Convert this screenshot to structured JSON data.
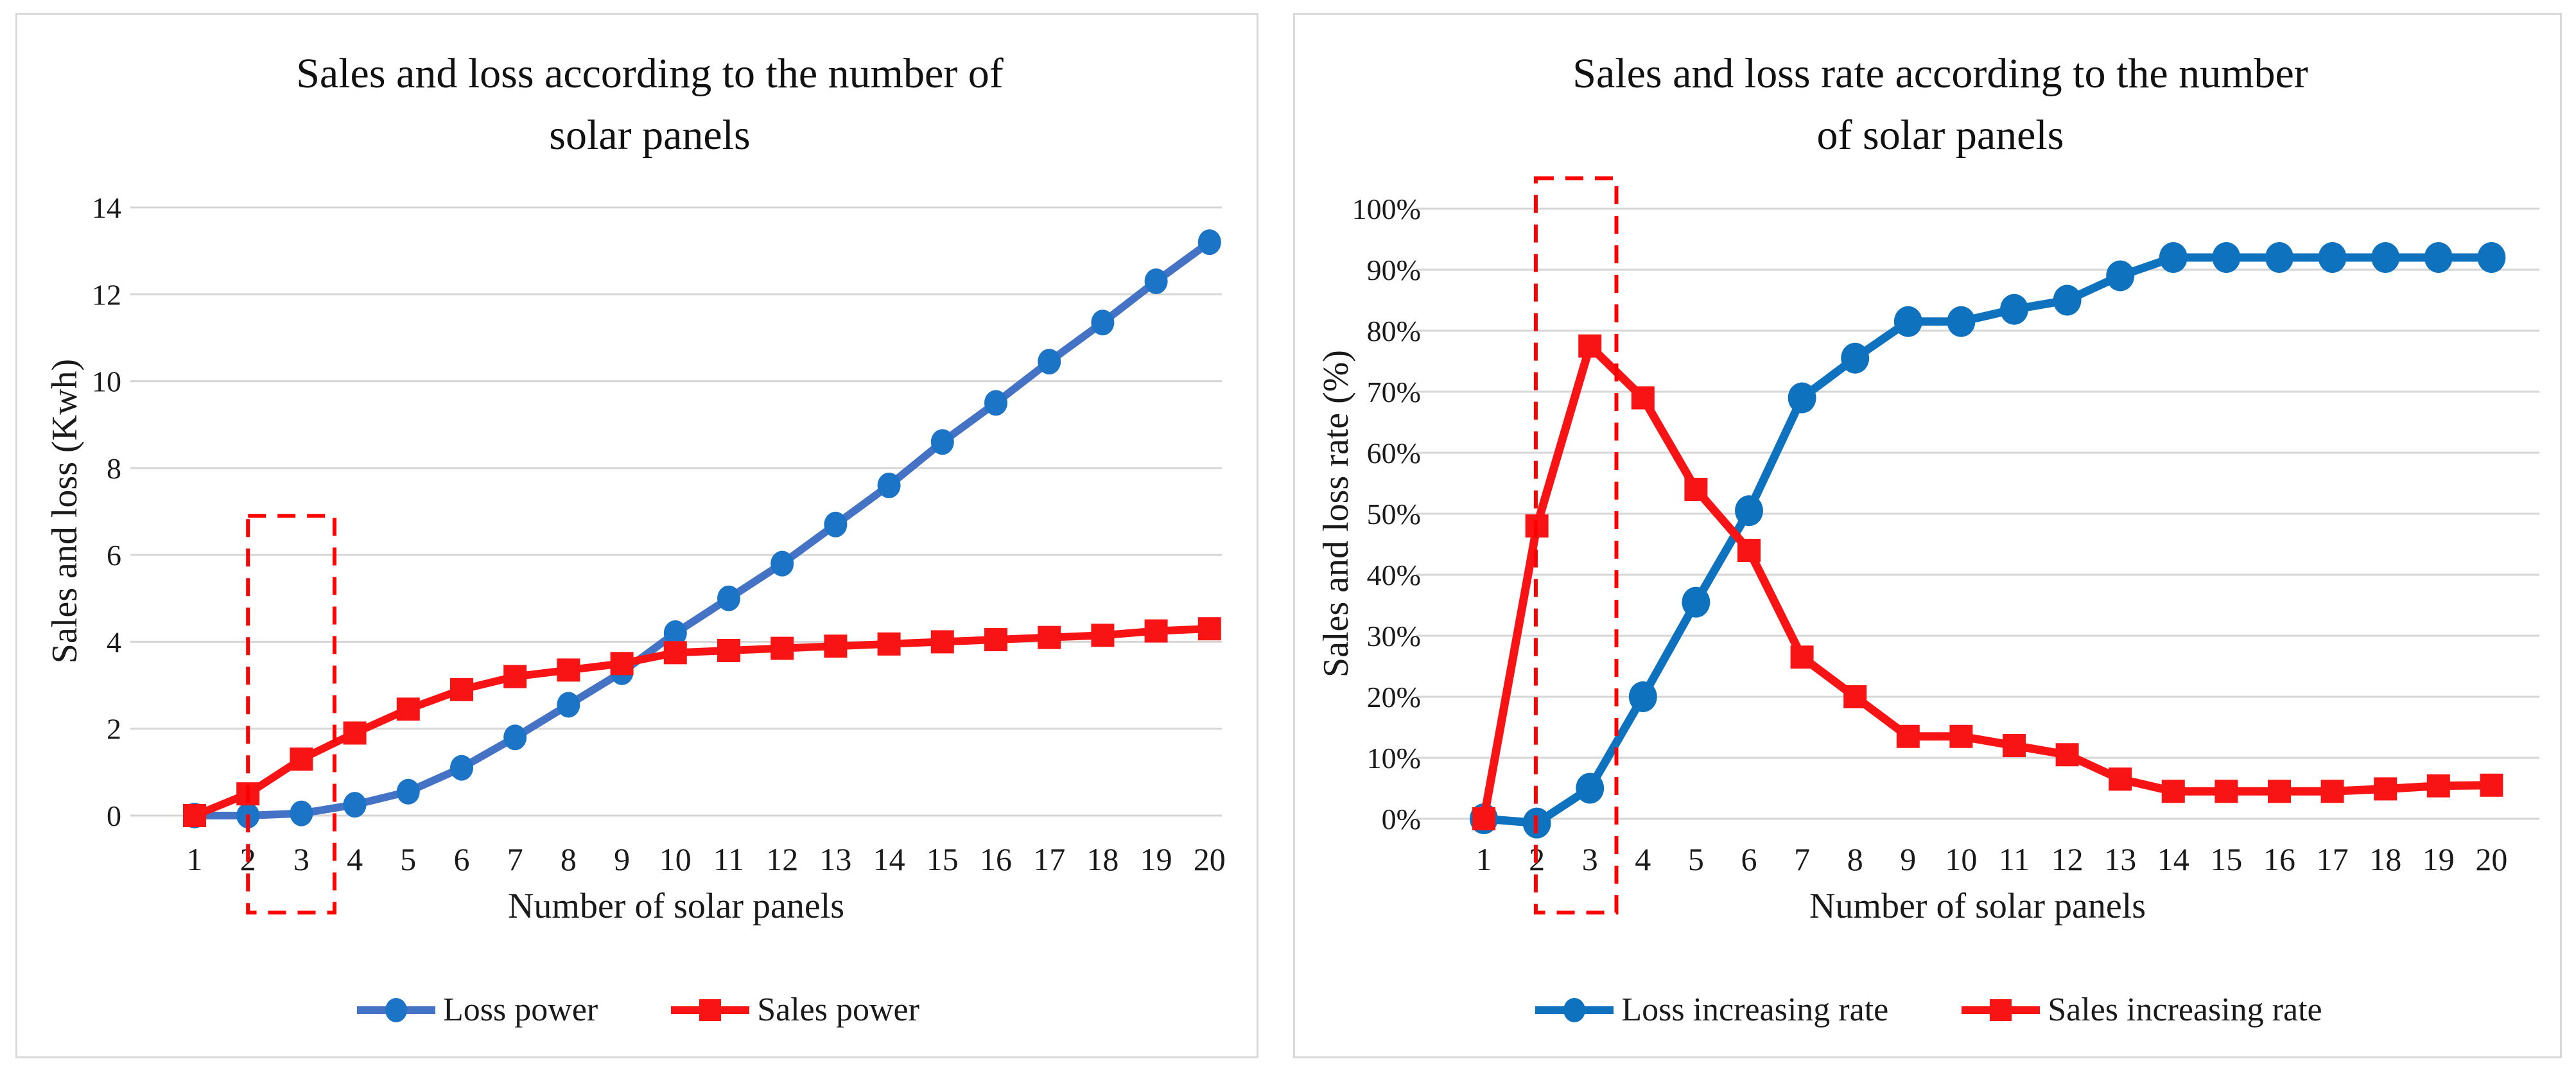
{
  "chart_data": [
    {
      "type": "line",
      "title_lines": [
        "Sales and loss according to the number of",
        "solar panels"
      ],
      "xlabel": "Number of solar panels",
      "ylabel": "Sales and loss (Kwh)",
      "x": [
        1,
        2,
        3,
        4,
        5,
        6,
        7,
        8,
        9,
        10,
        11,
        12,
        13,
        14,
        15,
        16,
        17,
        18,
        19,
        20
      ],
      "x_tick_labels": [
        "1",
        "2",
        "3",
        "4",
        "5",
        "6",
        "7",
        "8",
        "9",
        "10",
        "11",
        "12",
        "13",
        "14",
        "15",
        "16",
        "17",
        "18",
        "19",
        "20"
      ],
      "y_ticks": [
        0,
        2,
        4,
        6,
        8,
        10,
        12,
        14
      ],
      "y_tick_labels": [
        "0",
        "2",
        "4",
        "6",
        "8",
        "10",
        "12",
        "14"
      ],
      "ylim": [
        0,
        14
      ],
      "grid": true,
      "legend_position": "bottom",
      "series": [
        {
          "name": "Loss power",
          "marker": "circle",
          "line_color": "#4472C4",
          "marker_color": "#1B74C5",
          "values": [
            0,
            0,
            0.05,
            0.25,
            0.55,
            1.1,
            1.8,
            2.55,
            3.3,
            4.2,
            5.0,
            5.8,
            6.7,
            7.6,
            8.6,
            9.5,
            10.45,
            11.35,
            12.3,
            13.2
          ]
        },
        {
          "name": "Sales power",
          "marker": "square",
          "line_color": "#F81414",
          "marker_color": "#F81414",
          "values": [
            0,
            0.5,
            1.3,
            1.9,
            2.45,
            2.9,
            3.2,
            3.35,
            3.5,
            3.75,
            3.8,
            3.85,
            3.9,
            3.95,
            4.0,
            4.05,
            4.1,
            4.15,
            4.25,
            4.3
          ]
        }
      ],
      "annotation": {
        "shape": "dashed-rectangle",
        "color": "#FF0000",
        "x_range": [
          2.0,
          3.62
        ],
        "y_top": 6.9,
        "extends_below_axis": true
      }
    },
    {
      "type": "line",
      "title_lines": [
        "Sales and loss rate according to the number",
        "of solar panels"
      ],
      "xlabel": "Number of solar panels",
      "ylabel": "Sales and loss rate (%)",
      "x": [
        1,
        2,
        3,
        4,
        5,
        6,
        7,
        8,
        9,
        10,
        11,
        12,
        13,
        14,
        15,
        16,
        17,
        18,
        19,
        20
      ],
      "x_tick_labels": [
        "1",
        "2",
        "3",
        "4",
        "5",
        "6",
        "7",
        "8",
        "9",
        "10",
        "11",
        "12",
        "13",
        "14",
        "15",
        "16",
        "17",
        "18",
        "19",
        "20"
      ],
      "y_ticks": [
        0,
        10,
        20,
        30,
        40,
        50,
        60,
        70,
        80,
        90,
        100
      ],
      "y_tick_labels": [
        "0%",
        "10%",
        "20%",
        "30%",
        "40%",
        "50%",
        "60%",
        "70%",
        "80%",
        "90%",
        "100%"
      ],
      "ylim": [
        0,
        100
      ],
      "grid": true,
      "legend_position": "bottom",
      "series": [
        {
          "name": "Loss increasing rate",
          "marker": "circle",
          "line_color": "#0F72BE",
          "marker_color": "#0F72BE",
          "values": [
            0,
            -0.7,
            5,
            20,
            35.5,
            50.5,
            69,
            75.5,
            81.5,
            81.5,
            83.5,
            85,
            89,
            92,
            92,
            92,
            92,
            92,
            92,
            92
          ]
        },
        {
          "name": "Sales increasing rate",
          "marker": "square",
          "line_color": "#F81414",
          "marker_color": "#F81414",
          "values": [
            0,
            48,
            77.5,
            69,
            54,
            44,
            26.5,
            20,
            13.5,
            13.5,
            12,
            10.5,
            6.5,
            4.5,
            4.5,
            4.5,
            4.5,
            4.9,
            5.4,
            5.5
          ]
        }
      ],
      "annotation": {
        "shape": "dashed-rectangle",
        "color": "#FF0000",
        "x_range": [
          1.98,
          3.5
        ],
        "y_top": 105,
        "extends_below_axis": true
      }
    }
  ]
}
